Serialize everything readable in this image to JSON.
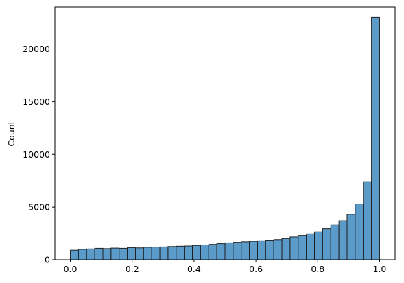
{
  "colors": {
    "bar_fill": "#5B9BC9",
    "bar_edge": "#1f1f1f",
    "axes": "#000000"
  },
  "chart_data": {
    "type": "bar",
    "title": "",
    "xlabel": "",
    "ylabel": "Count",
    "grid": false,
    "legend": "none",
    "xlim": [
      -0.05,
      1.05
    ],
    "ylim": [
      0,
      24000
    ],
    "xticks": [
      0.0,
      0.2,
      0.4,
      0.6,
      0.8,
      1.0
    ],
    "xtick_labels": [
      "0.0",
      "0.2",
      "0.4",
      "0.6",
      "0.8",
      "1.0"
    ],
    "yticks": [
      0,
      5000,
      10000,
      15000,
      20000
    ],
    "ytick_labels": [
      "0",
      "5000",
      "10000",
      "15000",
      "20000"
    ],
    "bin_start": 0.0,
    "bin_end": 1.0,
    "values": [
      900,
      980,
      1020,
      1080,
      1050,
      1100,
      1080,
      1150,
      1120,
      1180,
      1200,
      1210,
      1250,
      1280,
      1300,
      1350,
      1400,
      1450,
      1520,
      1600,
      1650,
      1700,
      1750,
      1800,
      1850,
      1900,
      2000,
      2150,
      2300,
      2450,
      2650,
      2950,
      3300,
      3700,
      4300,
      5300,
      7400,
      23000
    ]
  }
}
